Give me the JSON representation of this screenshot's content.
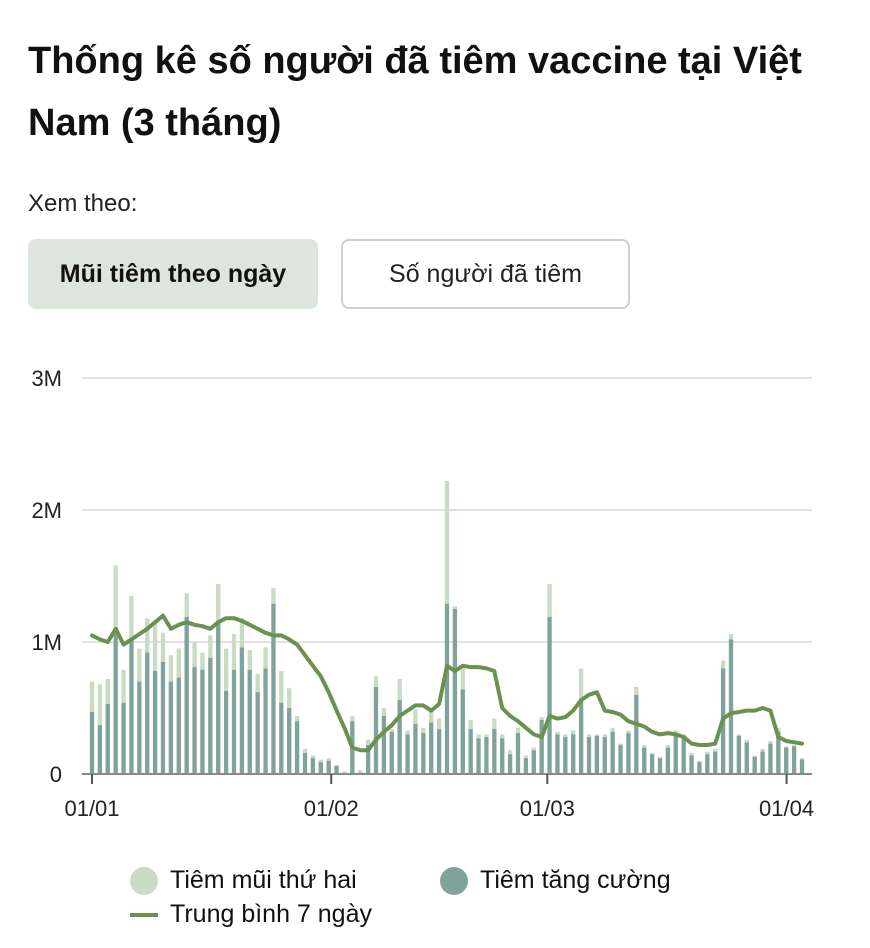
{
  "title": "Thống kê số người đã tiêm vaccine tại Việt Nam (3 tháng)",
  "view_label": "Xem theo:",
  "buttons": {
    "active": "Mũi tiêm theo ngày",
    "inactive": "Số người đã tiêm"
  },
  "legend": {
    "second_dose": "Tiêm mũi thứ hai",
    "booster": "Tiêm tăng cường",
    "avg7": "Trung bình 7 ngày"
  },
  "colors": {
    "second_dose": "#c8dcc4",
    "booster": "#7fa39a",
    "avg7": "#6b9150",
    "grid": "#e2e2e2",
    "button_active": "#dde6dd"
  },
  "chart_data": {
    "type": "bar",
    "title": "Thống kê số người đã tiêm vaccine tại Việt Nam (3 tháng)",
    "x_start": "2022-01-01",
    "x_end": "2022-04-03",
    "ylim": [
      0,
      3000000
    ],
    "y_ticks": [
      {
        "value": 0,
        "label": "0"
      },
      {
        "value": 1000000,
        "label": "1M"
      },
      {
        "value": 2000000,
        "label": "2M"
      },
      {
        "value": 3000000,
        "label": "3M"
      }
    ],
    "x_ticks": [
      {
        "date": "2022-01-01",
        "label": "01/01"
      },
      {
        "date": "2022-02-01",
        "label": "01/02"
      },
      {
        "date": "2022-03-01",
        "label": "01/03"
      },
      {
        "date": "2022-04-01",
        "label": "01/04"
      }
    ],
    "grid": true,
    "legend_position": "bottom",
    "stacked": true,
    "series": [
      {
        "name": "Tiêm tăng cường",
        "color": "#7fa39a",
        "values": [
          470000,
          370000,
          530000,
          1100000,
          540000,
          1020000,
          700000,
          920000,
          780000,
          850000,
          700000,
          730000,
          1190000,
          810000,
          790000,
          880000,
          1150000,
          630000,
          790000,
          960000,
          790000,
          620000,
          800000,
          1290000,
          540000,
          500000,
          400000,
          160000,
          120000,
          90000,
          100000,
          60000,
          0,
          400000,
          10000,
          220000,
          660000,
          440000,
          320000,
          560000,
          300000,
          380000,
          310000,
          390000,
          340000,
          1290000,
          1250000,
          640000,
          340000,
          270000,
          280000,
          340000,
          270000,
          150000,
          310000,
          120000,
          180000,
          410000,
          1190000,
          300000,
          280000,
          300000,
          570000,
          280000,
          290000,
          280000,
          320000,
          220000,
          310000,
          600000,
          200000,
          150000,
          120000,
          200000,
          310000,
          290000,
          140000,
          90000,
          150000,
          170000,
          800000,
          1020000,
          290000,
          240000,
          130000,
          170000,
          230000,
          320000,
          200000,
          210000,
          110000
        ],
        "totals": [
          700000,
          680000,
          720000,
          1580000,
          790000,
          1350000,
          950000,
          1180000,
          1150000,
          1070000,
          900000,
          950000,
          1370000,
          1000000,
          920000,
          1050000,
          1440000,
          950000,
          1060000,
          1180000,
          940000,
          760000,
          960000,
          1410000,
          780000,
          650000,
          440000,
          190000,
          140000,
          110000,
          120000,
          70000,
          20000,
          440000,
          30000,
          260000,
          740000,
          500000,
          340000,
          720000,
          330000,
          490000,
          350000,
          480000,
          420000,
          2220000,
          1270000,
          800000,
          410000,
          300000,
          300000,
          420000,
          300000,
          180000,
          350000,
          140000,
          200000,
          430000,
          1440000,
          320000,
          300000,
          330000,
          800000,
          300000,
          300000,
          300000,
          350000,
          230000,
          330000,
          660000,
          220000,
          160000,
          130000,
          220000,
          330000,
          300000,
          160000,
          100000,
          170000,
          190000,
          860000,
          1060000,
          300000,
          260000,
          140000,
          190000,
          250000,
          350000,
          210000,
          220000,
          120000
        ]
      },
      {
        "name": "Tiêm mũi thứ hai",
        "color": "#c8dcc4",
        "note_values": "stacked on top of Tiêm tăng cường; totals listed above"
      },
      {
        "name": "Trung bình 7 ngày",
        "type": "line",
        "color": "#6b9150",
        "values": [
          1050000,
          1020000,
          1000000,
          1100000,
          980000,
          1020000,
          1060000,
          1100000,
          1150000,
          1200000,
          1100000,
          1130000,
          1150000,
          1130000,
          1120000,
          1100000,
          1150000,
          1180000,
          1180000,
          1160000,
          1130000,
          1100000,
          1070000,
          1050000,
          1050000,
          1020000,
          980000,
          900000,
          820000,
          740000,
          620000,
          480000,
          350000,
          200000,
          180000,
          180000,
          260000,
          320000,
          370000,
          440000,
          480000,
          520000,
          520000,
          480000,
          530000,
          820000,
          780000,
          820000,
          810000,
          810000,
          800000,
          780000,
          500000,
          440000,
          400000,
          350000,
          300000,
          280000,
          440000,
          420000,
          430000,
          480000,
          560000,
          600000,
          620000,
          480000,
          470000,
          450000,
          400000,
          380000,
          360000,
          320000,
          300000,
          310000,
          300000,
          280000,
          230000,
          220000,
          220000,
          230000,
          420000,
          460000,
          470000,
          480000,
          480000,
          500000,
          480000,
          280000,
          250000,
          240000,
          230000
        ]
      }
    ]
  }
}
